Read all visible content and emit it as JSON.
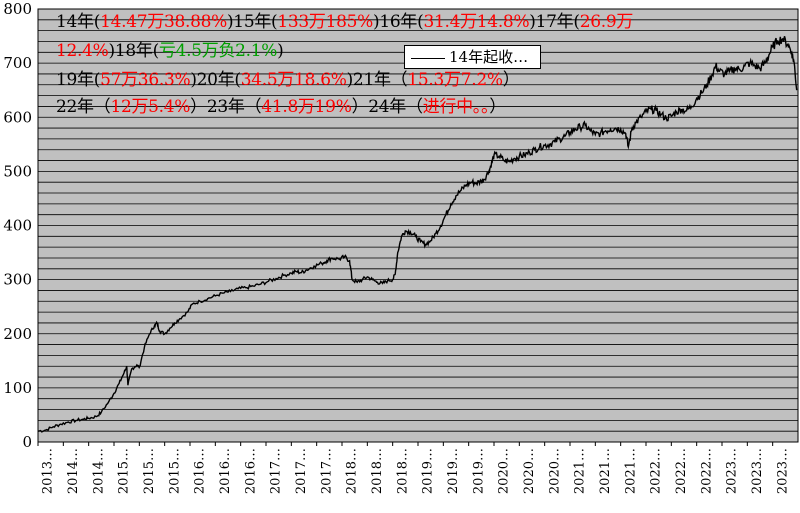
{
  "chart_data": {
    "type": "line",
    "title": "",
    "xlabel": "",
    "ylabel": "",
    "ylim": [
      0,
      800
    ],
    "yticks": [
      0,
      100,
      200,
      300,
      400,
      500,
      600,
      700,
      800
    ],
    "grid": "horizontal",
    "xtick_labels": [
      "2013…",
      "2014…",
      "2014…",
      "2015…",
      "2015…",
      "2015…",
      "2016…",
      "2016…",
      "2016…",
      "2017…",
      "2017…",
      "2017…",
      "2018…",
      "2018…",
      "2018…",
      "2019…",
      "2019…",
      "2019…",
      "2020…",
      "2020…",
      "2020…",
      "2021…",
      "2021…",
      "2021…",
      "2022…",
      "2022…",
      "2022…",
      "2023…",
      "2023…",
      "2023…"
    ],
    "x_index_max": 30,
    "series": [
      {
        "name": "14年起收…",
        "color": "#000000",
        "points": [
          [
            0.0,
            20
          ],
          [
            0.3,
            22
          ],
          [
            0.6,
            28
          ],
          [
            0.9,
            33
          ],
          [
            1.2,
            37
          ],
          [
            1.5,
            40
          ],
          [
            1.8,
            42
          ],
          [
            2.0,
            44
          ],
          [
            2.3,
            47
          ],
          [
            2.5,
            55
          ],
          [
            2.8,
            75
          ],
          [
            3.0,
            90
          ],
          [
            3.2,
            108
          ],
          [
            3.4,
            128
          ],
          [
            3.5,
            140
          ],
          [
            3.55,
            105
          ],
          [
            3.7,
            135
          ],
          [
            3.9,
            142
          ],
          [
            4.0,
            138
          ],
          [
            4.2,
            175
          ],
          [
            4.4,
            200
          ],
          [
            4.6,
            215
          ],
          [
            4.7,
            220
          ],
          [
            4.8,
            205
          ],
          [
            5.0,
            200
          ],
          [
            5.2,
            210
          ],
          [
            5.4,
            220
          ],
          [
            5.6,
            228
          ],
          [
            5.9,
            240
          ],
          [
            6.1,
            255
          ],
          [
            6.4,
            260
          ],
          [
            6.7,
            265
          ],
          [
            7.0,
            270
          ],
          [
            7.3,
            275
          ],
          [
            7.6,
            278
          ],
          [
            7.9,
            283
          ],
          [
            8.2,
            285
          ],
          [
            8.5,
            288
          ],
          [
            8.8,
            292
          ],
          [
            9.1,
            297
          ],
          [
            9.4,
            302
          ],
          [
            9.7,
            308
          ],
          [
            10.0,
            312
          ],
          [
            10.2,
            315
          ],
          [
            10.4,
            313
          ],
          [
            10.6,
            318
          ],
          [
            10.9,
            325
          ],
          [
            11.2,
            330
          ],
          [
            11.4,
            335
          ],
          [
            11.6,
            340
          ],
          [
            11.9,
            338
          ],
          [
            12.1,
            342
          ],
          [
            12.3,
            335
          ],
          [
            12.4,
            300
          ],
          [
            12.6,
            295
          ],
          [
            12.8,
            300
          ],
          [
            13.0,
            305
          ],
          [
            13.2,
            300
          ],
          [
            13.4,
            295
          ],
          [
            13.6,
            293
          ],
          [
            13.8,
            298
          ],
          [
            14.0,
            300
          ],
          [
            14.1,
            310
          ],
          [
            14.2,
            350
          ],
          [
            14.35,
            380
          ],
          [
            14.5,
            390
          ],
          [
            14.7,
            388
          ],
          [
            14.9,
            380
          ],
          [
            15.1,
            370
          ],
          [
            15.3,
            365
          ],
          [
            15.5,
            372
          ],
          [
            15.7,
            385
          ],
          [
            15.9,
            400
          ],
          [
            16.1,
            420
          ],
          [
            16.3,
            440
          ],
          [
            16.5,
            455
          ],
          [
            16.7,
            465
          ],
          [
            16.9,
            475
          ],
          [
            17.1,
            480
          ],
          [
            17.3,
            478
          ],
          [
            17.5,
            482
          ],
          [
            17.6,
            485
          ],
          [
            17.8,
            500
          ],
          [
            17.9,
            515
          ],
          [
            18.0,
            530
          ],
          [
            18.2,
            528
          ],
          [
            18.4,
            520
          ],
          [
            18.6,
            518
          ],
          [
            18.8,
            524
          ],
          [
            19.0,
            528
          ],
          [
            19.2,
            530
          ],
          [
            19.4,
            535
          ],
          [
            19.6,
            540
          ],
          [
            19.8,
            545
          ],
          [
            20.0,
            548
          ],
          [
            20.2,
            550
          ],
          [
            20.4,
            555
          ],
          [
            20.6,
            560
          ],
          [
            20.8,
            565
          ],
          [
            21.0,
            572
          ],
          [
            21.2,
            578
          ],
          [
            21.4,
            582
          ],
          [
            21.6,
            585
          ],
          [
            21.8,
            575
          ],
          [
            22.0,
            568
          ],
          [
            22.2,
            570
          ],
          [
            22.4,
            575
          ],
          [
            22.6,
            578
          ],
          [
            22.8,
            580
          ],
          [
            23.0,
            578
          ],
          [
            23.2,
            570
          ],
          [
            23.3,
            545
          ],
          [
            23.45,
            580
          ],
          [
            23.6,
            590
          ],
          [
            23.8,
            600
          ],
          [
            24.0,
            610
          ],
          [
            24.2,
            615
          ],
          [
            24.4,
            612
          ],
          [
            24.6,
            605
          ],
          [
            24.8,
            598
          ],
          [
            25.0,
            602
          ],
          [
            25.2,
            610
          ],
          [
            25.4,
            615
          ],
          [
            25.6,
            612
          ],
          [
            25.8,
            620
          ],
          [
            26.0,
            635
          ],
          [
            26.2,
            645
          ],
          [
            26.4,
            660
          ],
          [
            26.6,
            678
          ],
          [
            26.75,
            695
          ],
          [
            26.9,
            685
          ],
          [
            27.1,
            680
          ],
          [
            27.3,
            685
          ],
          [
            27.5,
            690
          ],
          [
            27.7,
            688
          ],
          [
            27.9,
            695
          ],
          [
            28.1,
            700
          ],
          [
            28.3,
            695
          ],
          [
            28.5,
            690
          ],
          [
            28.7,
            700
          ],
          [
            28.85,
            715
          ],
          [
            29.0,
            730
          ],
          [
            29.2,
            742
          ],
          [
            29.4,
            745
          ],
          [
            29.6,
            735
          ],
          [
            29.75,
            720
          ],
          [
            29.85,
            700
          ],
          [
            29.95,
            650
          ]
        ]
      }
    ],
    "legend": {
      "label": "14年起收…",
      "placement": "top-center"
    },
    "annotations": [
      [
        {
          "t": "14年(",
          "c": "black"
        },
        {
          "t": "14.47万38.88%",
          "c": "red"
        },
        {
          "t": ")15年(",
          "c": "black"
        },
        {
          "t": "133万185%",
          "c": "red"
        },
        {
          "t": ")16年(",
          "c": "black"
        },
        {
          "t": "31.4万14.8%",
          "c": "red"
        },
        {
          "t": ")17年(",
          "c": "black"
        },
        {
          "t": "26.9万",
          "c": "red"
        }
      ],
      [
        {
          "t": "12.4%",
          "c": "red"
        },
        {
          "t": ")18年(",
          "c": "black"
        },
        {
          "t": "亏4.5万负2.1%",
          "c": "green"
        },
        {
          "t": ")",
          "c": "black"
        }
      ],
      [
        {
          "t": "19年(",
          "c": "black"
        },
        {
          "t": "57万36.3%",
          "c": "red"
        },
        {
          "t": ")20年(",
          "c": "black"
        },
        {
          "t": "34.5万18.6%",
          "c": "red"
        },
        {
          "t": ")21年（",
          "c": "black"
        },
        {
          "t": "15.3万7.2%",
          "c": "red"
        },
        {
          "t": "）",
          "c": "black"
        }
      ],
      [
        {
          "t": "22年（",
          "c": "black"
        },
        {
          "t": "12万5.4%",
          "c": "red"
        },
        {
          "t": "）23年（",
          "c": "black"
        },
        {
          "t": "41.8万19%",
          "c": "red"
        },
        {
          "t": "）24年（",
          "c": "black"
        },
        {
          "t": "进行中。。",
          "c": "red"
        },
        {
          "t": "）",
          "c": "black"
        }
      ]
    ],
    "colors": {
      "plot_bg": "#c0c0c0",
      "grid": "#000000",
      "line": "#000000",
      "red": "#ff0000",
      "green": "#00a000"
    }
  }
}
